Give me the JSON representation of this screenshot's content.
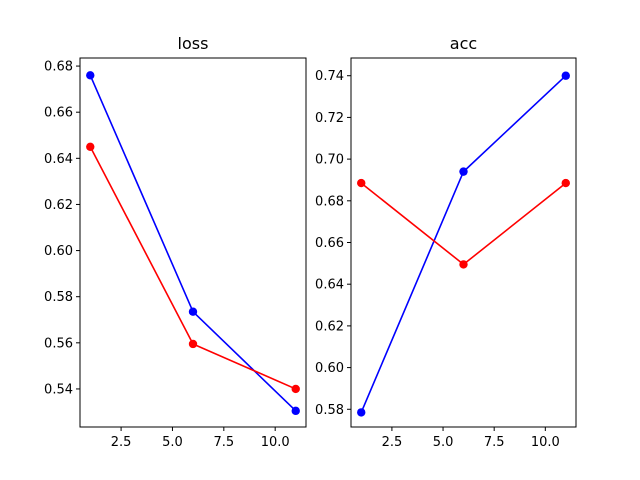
{
  "chart_data": [
    {
      "type": "line",
      "title": "loss",
      "xlabel": "",
      "ylabel": "",
      "xlim": [
        0.5,
        11.5
      ],
      "ylim": [
        0.5235,
        0.6835
      ],
      "xticks": [
        2.5,
        5.0,
        7.5,
        10.0
      ],
      "xtick_labels": [
        "2.5",
        "5.0",
        "7.5",
        "10.0"
      ],
      "yticks": [
        0.54,
        0.56,
        0.58,
        0.6,
        0.62,
        0.64,
        0.66,
        0.68
      ],
      "ytick_labels": [
        "0.54",
        "0.56",
        "0.58",
        "0.60",
        "0.62",
        "0.64",
        "0.66",
        "0.68"
      ],
      "grid": false,
      "series": [
        {
          "color": "#0000ff",
          "x": [
            1,
            6,
            11
          ],
          "y": [
            0.676,
            0.5735,
            0.5305
          ]
        },
        {
          "color": "#ff0000",
          "x": [
            1,
            6,
            11
          ],
          "y": [
            0.645,
            0.5595,
            0.54
          ]
        }
      ]
    },
    {
      "type": "line",
      "title": "acc",
      "xlabel": "",
      "ylabel": "",
      "xlim": [
        0.5,
        11.5
      ],
      "ylim": [
        0.5715,
        0.7485
      ],
      "xticks": [
        2.5,
        5.0,
        7.5,
        10.0
      ],
      "xtick_labels": [
        "2.5",
        "5.0",
        "7.5",
        "10.0"
      ],
      "yticks": [
        0.58,
        0.6,
        0.62,
        0.64,
        0.66,
        0.68,
        0.7,
        0.72,
        0.74
      ],
      "ytick_labels": [
        "0.58",
        "0.60",
        "0.62",
        "0.64",
        "0.66",
        "0.68",
        "0.70",
        "0.72",
        "0.74"
      ],
      "grid": false,
      "series": [
        {
          "color": "#0000ff",
          "x": [
            1,
            6,
            11
          ],
          "y": [
            0.5785,
            0.694,
            0.74
          ]
        },
        {
          "color": "#ff0000",
          "x": [
            1,
            6,
            11
          ],
          "y": [
            0.6885,
            0.6495,
            0.6885
          ]
        }
      ]
    }
  ]
}
